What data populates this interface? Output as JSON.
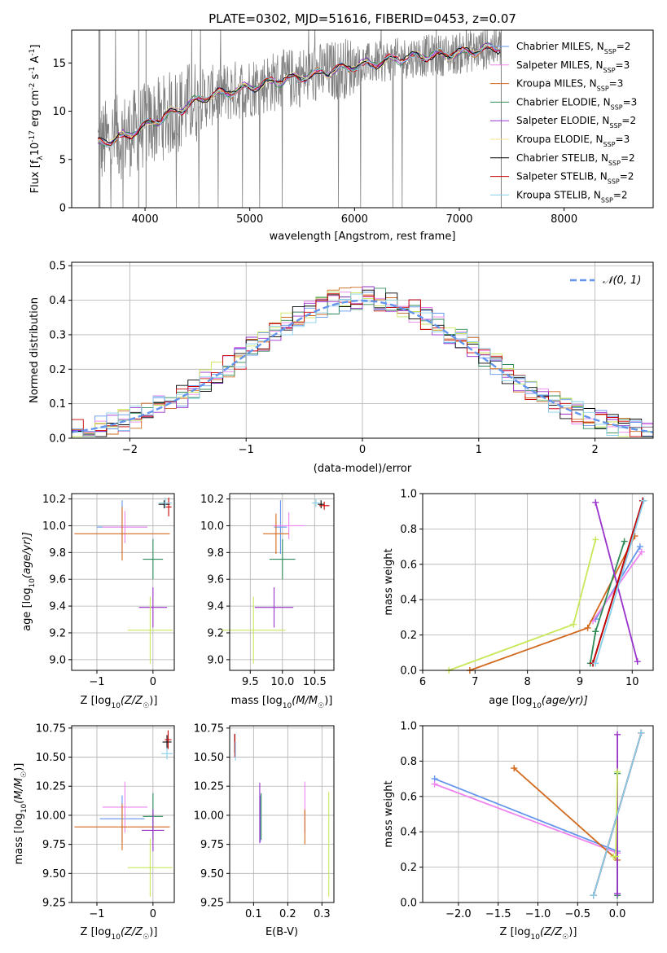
{
  "chart_data": [
    {
      "id": "spectrum",
      "type": "line",
      "title": "PLATE=0302, MJD=51616, FIBERID=0453, z=0.07",
      "xlabel": "wavelength [Angstrom, rest frame]",
      "ylabel_parts": [
        "Flux [f",
        "λ",
        "10",
        "-17",
        " erg cm",
        "-2",
        " s",
        "-1",
        " A",
        "-1",
        "]"
      ],
      "xlim": [
        3300,
        8850
      ],
      "ylim": [
        0,
        18.4
      ],
      "xticks": [
        4000,
        5000,
        6000,
        7000,
        8000
      ],
      "yticks": [
        0,
        5,
        10,
        15
      ],
      "data_color": "#808080",
      "model_continuum": {
        "x": [
          3550,
          3650,
          3750,
          3850,
          3950,
          4050,
          4150,
          4250,
          4350,
          4450,
          4600,
          4800,
          5000,
          5200,
          5400,
          5600,
          5800,
          6000,
          6200,
          6400,
          6600,
          6800,
          7000,
          7100,
          7200,
          7300,
          7400
        ],
        "y": [
          6.6,
          6.9,
          7.3,
          7.6,
          8.2,
          8.8,
          9.2,
          9.8,
          10.3,
          10.9,
          11.5,
          12.0,
          12.5,
          13.0,
          13.4,
          13.8,
          14.2,
          14.7,
          15.0,
          15.4,
          15.7,
          15.8,
          16.0,
          16.2,
          16.4,
          16.5,
          16.6
        ]
      },
      "legend": [
        {
          "label": "Chabrier MILES, N",
          "sub": "SSP",
          "value": "=2",
          "color": "#6495ED"
        },
        {
          "label": "Salpeter MILES, N",
          "sub": "SSP",
          "value": "=3",
          "color": "#EE82EE"
        },
        {
          "label": "Kroupa MILES, N",
          "sub": "SSP",
          "value": "=3",
          "color": "#D2691E"
        },
        {
          "label": "Chabrier ELODIE, N",
          "sub": "SSP",
          "value": "=3",
          "color": "#2E8B57"
        },
        {
          "label": "Salpeter ELODIE, N",
          "sub": "SSP",
          "value": "=2",
          "color": "#9932CC"
        },
        {
          "label": "Kroupa ELODIE, N",
          "sub": "SSP",
          "value": "=3",
          "color": "#F0E68C"
        },
        {
          "label": "Chabrier STELIB, N",
          "sub": "SSP",
          "value": "=2",
          "color": "#000000"
        },
        {
          "label": "Salpeter STELIB, N",
          "sub": "SSP",
          "value": "=2",
          "color": "#CC0000"
        },
        {
          "label": "Kroupa STELIB, N",
          "sub": "SSP",
          "value": "=2",
          "color": "#87CEEB"
        }
      ]
    },
    {
      "id": "residuals",
      "type": "line",
      "xlabel": "(data-model)/error",
      "ylabel": "Normed distribution",
      "xlim": [
        -2.5,
        2.5
      ],
      "ylim": [
        0,
        0.51
      ],
      "xticks": [
        -2,
        -1,
        0,
        1,
        2
      ],
      "yticks": [
        0.0,
        0.1,
        0.2,
        0.3,
        0.4,
        0.5
      ],
      "grid": true,
      "legend_label": "𝒩(0, 1)",
      "gaussian_color": "#6495ED",
      "bin_width": 0.1,
      "hist_colors": [
        "#6495ED",
        "#EE82EE",
        "#D2691E",
        "#2E8B57",
        "#9932CC",
        "#C8E85A",
        "#000000",
        "#CC0000",
        "#87CEEB"
      ]
    },
    {
      "id": "age-vs-Z",
      "type": "scatter",
      "xlabel_parts": [
        "Z [log",
        "10",
        "(Z/Z",
        "☉",
        ")]"
      ],
      "ylabel_parts": [
        "age  [log",
        "10",
        "(age/yr)]"
      ],
      "xlim": [
        -1.45,
        0.38
      ],
      "ylim": [
        8.92,
        10.24
      ],
      "xticks": [
        -1,
        0
      ],
      "yticks": [
        9.0,
        9.2,
        9.4,
        9.6,
        9.8,
        10.0,
        10.2
      ],
      "points": [
        {
          "x": -0.55,
          "y": 9.99,
          "xerr": 0.45,
          "yerr": 0.2,
          "color": "#6495ED"
        },
        {
          "x": -0.5,
          "y": 9.99,
          "xerr": 0.4,
          "yerr": 0.12,
          "color": "#EE82EE"
        },
        {
          "x": -0.55,
          "y": 9.94,
          "xerr": 0.85,
          "yerr": 0.2,
          "color": "#D2691E"
        },
        {
          "x": 0.0,
          "y": 9.75,
          "xerr": 0.18,
          "yerr": 0.15,
          "color": "#2E8B57"
        },
        {
          "x": 0.0,
          "y": 9.39,
          "xerr": 0.25,
          "yerr": 0.15,
          "color": "#9932CC"
        },
        {
          "x": -0.05,
          "y": 9.22,
          "xerr": 0.4,
          "yerr": 0.25,
          "color": "#C8E85A"
        },
        {
          "x": 0.2,
          "y": 10.16,
          "xerr": 0.1,
          "yerr": 0.03,
          "color": "#000000"
        },
        {
          "x": 0.28,
          "y": 10.14,
          "xerr": 0.05,
          "yerr": 0.07,
          "color": "#CC0000"
        },
        {
          "x": 0.22,
          "y": 10.17,
          "xerr": 0.12,
          "yerr": 0.04,
          "color": "#87CEEB"
        }
      ]
    },
    {
      "id": "age-vs-mass",
      "type": "scatter",
      "xlabel_parts": [
        "mass [log",
        "10",
        "(M/M",
        "☉",
        ")]"
      ],
      "ylabel": "",
      "xlim": [
        9.18,
        10.8
      ],
      "ylim": [
        8.92,
        10.24
      ],
      "xticks": [
        9.5,
        10.0,
        10.5
      ],
      "yticks": [
        9.0,
        9.2,
        9.4,
        9.6,
        9.8,
        10.0,
        10.2
      ],
      "points": [
        {
          "x": 9.97,
          "y": 9.99,
          "xerr": 0.1,
          "yerr": 0.2,
          "color": "#6495ED"
        },
        {
          "x": 10.1,
          "y": 10.0,
          "xerr": 0.25,
          "yerr": 0.1,
          "color": "#EE82EE"
        },
        {
          "x": 9.9,
          "y": 9.94,
          "xerr": 0.2,
          "yerr": 0.15,
          "color": "#D2691E"
        },
        {
          "x": 10.0,
          "y": 9.75,
          "xerr": 0.2,
          "yerr": 0.15,
          "color": "#2E8B57"
        },
        {
          "x": 9.87,
          "y": 9.39,
          "xerr": 0.3,
          "yerr": 0.15,
          "color": "#9932CC"
        },
        {
          "x": 9.55,
          "y": 9.22,
          "xerr": 0.5,
          "yerr": 0.25,
          "color": "#C8E85A"
        },
        {
          "x": 10.6,
          "y": 10.16,
          "xerr": 0.05,
          "yerr": 0.03,
          "color": "#000000"
        },
        {
          "x": 10.65,
          "y": 10.15,
          "xerr": 0.08,
          "yerr": 0.03,
          "color": "#CC0000"
        },
        {
          "x": 10.52,
          "y": 10.17,
          "xerr": 0.06,
          "yerr": 0.03,
          "color": "#87CEEB"
        }
      ]
    },
    {
      "id": "weight-vs-age",
      "type": "line",
      "xlabel_parts": [
        "age  [log",
        "10",
        "(age/yr)]"
      ],
      "ylabel": "mass weight",
      "xlim": [
        6.0,
        10.4
      ],
      "ylim": [
        0,
        1.0
      ],
      "xticks": [
        6,
        7,
        8,
        9,
        10
      ],
      "yticks": [
        0.0,
        0.2,
        0.4,
        0.6,
        0.8,
        1.0
      ],
      "grid": true,
      "series": [
        {
          "color": "#6495ED",
          "x": [
            9.3,
            10.15
          ],
          "y": [
            0.29,
            0.7
          ]
        },
        {
          "color": "#EE82EE",
          "x": [
            9.25,
            10.18
          ],
          "y": [
            0.28,
            0.67
          ]
        },
        {
          "color": "#D2691E",
          "x": [
            6.9,
            9.15,
            10.05
          ],
          "y": [
            0.0,
            0.24,
            0.76
          ]
        },
        {
          "color": "#2E8B57",
          "x": [
            9.2,
            9.3,
            9.85
          ],
          "y": [
            0.04,
            0.22,
            0.73
          ]
        },
        {
          "color": "#9932CC",
          "x": [
            9.3,
            10.1
          ],
          "y": [
            0.95,
            0.05
          ]
        },
        {
          "color": "#C8E85A",
          "x": [
            6.5,
            8.88,
            9.3
          ],
          "y": [
            0.0,
            0.26,
            0.74
          ]
        },
        {
          "color": "#000000",
          "x": [
            9.25,
            10.2
          ],
          "y": [
            0.04,
            0.96
          ]
        },
        {
          "color": "#CC0000",
          "x": [
            9.25,
            10.2
          ],
          "y": [
            0.04,
            0.96
          ]
        },
        {
          "color": "#87CEEB",
          "x": [
            9.3,
            10.22
          ],
          "y": [
            0.04,
            0.96
          ]
        }
      ]
    },
    {
      "id": "mass-vs-Z",
      "type": "scatter",
      "xlabel_parts": [
        "Z [log",
        "10",
        "(Z/Z",
        "☉",
        ")]"
      ],
      "ylabel_parts": [
        "mass [log",
        "10",
        "(M/M",
        "☉",
        ")]"
      ],
      "xlim": [
        -1.45,
        0.38
      ],
      "ylim": [
        9.25,
        10.77
      ],
      "xticks": [
        -1,
        0
      ],
      "yticks": [
        9.25,
        9.5,
        9.75,
        10.0,
        10.25,
        10.5,
        10.75
      ],
      "points": [
        {
          "x": -0.55,
          "y": 9.97,
          "xerr": 0.4,
          "yerr": 0.2,
          "color": "#6495ED"
        },
        {
          "x": -0.5,
          "y": 10.07,
          "xerr": 0.4,
          "yerr": 0.22,
          "color": "#EE82EE"
        },
        {
          "x": -0.55,
          "y": 9.9,
          "xerr": 0.85,
          "yerr": 0.2,
          "color": "#D2691E"
        },
        {
          "x": 0.0,
          "y": 9.99,
          "xerr": 0.18,
          "yerr": 0.2,
          "color": "#2E8B57"
        },
        {
          "x": 0.0,
          "y": 9.87,
          "xerr": 0.2,
          "yerr": 0.18,
          "color": "#9932CC"
        },
        {
          "x": -0.05,
          "y": 9.55,
          "xerr": 0.4,
          "yerr": 0.25,
          "color": "#C8E85A"
        },
        {
          "x": 0.25,
          "y": 10.63,
          "xerr": 0.08,
          "yerr": 0.06,
          "color": "#000000"
        },
        {
          "x": 0.27,
          "y": 10.65,
          "xerr": 0.06,
          "yerr": 0.08,
          "color": "#CC0000"
        },
        {
          "x": 0.25,
          "y": 10.53,
          "xerr": 0.1,
          "yerr": 0.05,
          "color": "#87CEEB"
        }
      ]
    },
    {
      "id": "mass-vs-EBV",
      "type": "scatter",
      "xlabel": "E(B-V)",
      "ylabel": "",
      "xlim": [
        0.03,
        0.335
      ],
      "ylim": [
        9.25,
        10.77
      ],
      "xticks": [
        0.1,
        0.2,
        0.3
      ],
      "yticks": [
        9.25,
        9.5,
        9.75,
        10.0,
        10.25,
        10.5,
        10.75
      ],
      "points": [
        {
          "x": 0.12,
          "y": 9.97,
          "xerr": 0.0,
          "yerr": 0.2,
          "color": "#6495ED"
        },
        {
          "x": 0.25,
          "y": 10.07,
          "xerr": 0.0,
          "yerr": 0.22,
          "color": "#EE82EE"
        },
        {
          "x": 0.25,
          "y": 9.9,
          "xerr": 0.0,
          "yerr": 0.15,
          "color": "#D2691E"
        },
        {
          "x": 0.122,
          "y": 9.99,
          "xerr": 0.0,
          "yerr": 0.2,
          "color": "#2E8B57"
        },
        {
          "x": 0.118,
          "y": 10.02,
          "xerr": 0.0,
          "yerr": 0.26,
          "color": "#9932CC"
        },
        {
          "x": 0.32,
          "y": 9.75,
          "xerr": 0.0,
          "yerr": 0.45,
          "color": "#C8E85A"
        },
        {
          "x": 0.045,
          "y": 10.62,
          "xerr": 0.0,
          "yerr": 0.08,
          "color": "#000000"
        },
        {
          "x": 0.045,
          "y": 10.6,
          "xerr": 0.0,
          "yerr": 0.1,
          "color": "#CC0000"
        },
        {
          "x": 0.047,
          "y": 10.55,
          "xerr": 0.0,
          "yerr": 0.08,
          "color": "#87CEEB"
        }
      ]
    },
    {
      "id": "weight-vs-Z",
      "type": "line",
      "xlabel_parts": [
        "Z [log",
        "10",
        "(Z/Z",
        "☉",
        ")]"
      ],
      "ylabel": "mass weight",
      "xlim": [
        -2.45,
        0.45
      ],
      "ylim": [
        0,
        1.0
      ],
      "xticks": [
        -2.0,
        -1.5,
        -1.0,
        -0.5,
        0.0
      ],
      "yticks": [
        0.0,
        0.2,
        0.4,
        0.6,
        0.8,
        1.0
      ],
      "grid": true,
      "series": [
        {
          "color": "#6495ED",
          "x": [
            -2.3,
            0.0
          ],
          "y": [
            0.7,
            0.29
          ]
        },
        {
          "color": "#EE82EE",
          "x": [
            -2.3,
            0.0
          ],
          "y": [
            0.67,
            0.28
          ]
        },
        {
          "color": "#D2691E",
          "x": [
            -1.3,
            0.0
          ],
          "y": [
            0.76,
            0.24
          ]
        },
        {
          "color": "#2E8B57",
          "x": [
            0.0,
            0.0
          ],
          "y": [
            0.04,
            0.73
          ]
        },
        {
          "color": "#9932CC",
          "x": [
            0.0,
            0.0
          ],
          "y": [
            0.95,
            0.05
          ]
        },
        {
          "color": "#C8E85A",
          "x": [
            0.0,
            -0.02,
            -0.05
          ],
          "y": [
            0.74,
            0.26,
            0.26
          ]
        },
        {
          "color": "#000000",
          "x": [
            -0.3,
            0.3
          ],
          "y": [
            0.04,
            0.96
          ]
        },
        {
          "color": "#CC0000",
          "x": [
            -0.3,
            0.3
          ],
          "y": [
            0.04,
            0.96
          ]
        },
        {
          "color": "#87CEEB",
          "x": [
            -0.3,
            0.3
          ],
          "y": [
            0.04,
            0.96
          ]
        }
      ]
    }
  ]
}
